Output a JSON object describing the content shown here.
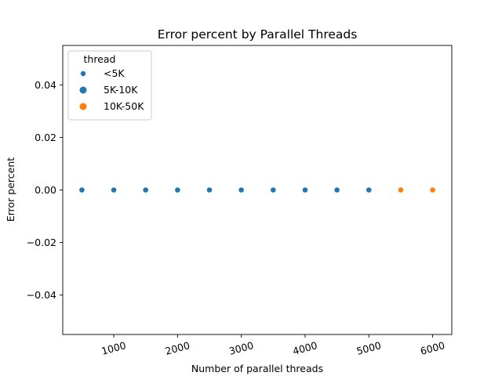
{
  "chart_data": {
    "type": "scatter",
    "title": "Error percent by Parallel Threads",
    "xlabel": "Number of parallel threads",
    "ylabel": "Error percent",
    "xlim": [
      200,
      6300
    ],
    "ylim": [
      -0.055,
      0.055
    ],
    "xticks": [
      1000,
      2000,
      3000,
      4000,
      5000,
      6000
    ],
    "xtick_labels": [
      "1000",
      "2000",
      "3000",
      "4000",
      "5000",
      "6000"
    ],
    "yticks": [
      0.04,
      0.02,
      0.0,
      -0.02,
      -0.04
    ],
    "ytick_labels": [
      "0.04",
      "0.02",
      "0.00",
      "−0.02",
      "−0.04"
    ],
    "grid": false,
    "legend": {
      "title": "thread",
      "placement": "top-left",
      "entries": [
        {
          "label": "<5K",
          "color": "#1f77b4"
        },
        {
          "label": "5K-10K",
          "color": "#1f77b4"
        },
        {
          "label": "10K-50K",
          "color": "#ff7f0e"
        }
      ]
    },
    "series": [
      {
        "name": "<5K",
        "color": "#1f77b4",
        "points": [
          {
            "x": 500,
            "y": 0.0
          },
          {
            "x": 1000,
            "y": 0.0
          },
          {
            "x": 1500,
            "y": 0.0
          },
          {
            "x": 2000,
            "y": 0.0
          },
          {
            "x": 2500,
            "y": 0.0
          },
          {
            "x": 3000,
            "y": 0.0
          },
          {
            "x": 3500,
            "y": 0.0
          },
          {
            "x": 4000,
            "y": 0.0
          },
          {
            "x": 4500,
            "y": 0.0
          },
          {
            "x": 5000,
            "y": 0.0
          }
        ]
      },
      {
        "name": "10K-50K",
        "color": "#ff7f0e",
        "points": [
          {
            "x": 5500,
            "y": 0.0
          },
          {
            "x": 6000,
            "y": 0.0
          }
        ]
      }
    ]
  }
}
